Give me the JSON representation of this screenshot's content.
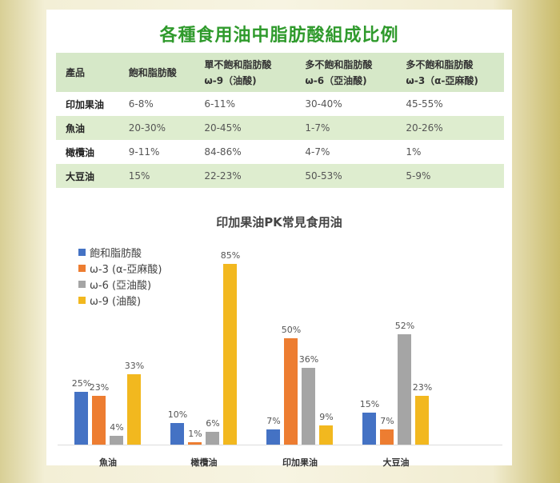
{
  "title": "各種食用油中脂肪酸組成比例",
  "table": {
    "headers": [
      [
        "產品",
        ""
      ],
      [
        "飽和脂肪酸",
        ""
      ],
      [
        "單不飽和脂肪酸",
        "ω-9（油酸)"
      ],
      [
        "多不飽和脂肪酸",
        "ω-6（亞油酸)"
      ],
      [
        "多不飽和脂肪酸",
        "ω-3（α-亞麻酸)"
      ]
    ],
    "rows": [
      [
        "印加果油",
        "6-8%",
        "6-11%",
        "30-40%",
        "45-55%"
      ],
      [
        "魚油",
        "20-30%",
        "20-45%",
        "1-7%",
        "20-26%"
      ],
      [
        "橄欖油",
        "9-11%",
        "84-86%",
        "4-7%",
        "1%"
      ],
      [
        "大豆油",
        "15%",
        "22-23%",
        "50-53%",
        "5-9%"
      ]
    ]
  },
  "chart_data": {
    "type": "bar",
    "title": "印加果油PK常見食用油",
    "categories": [
      "魚油",
      "橄欖油",
      "印加果油",
      "大豆油"
    ],
    "series": [
      {
        "name": "飽和脂肪酸",
        "color": "#4472c4",
        "values": [
          25,
          10,
          7,
          15
        ]
      },
      {
        "name": "ω-3 (α-亞麻酸)",
        "color": "#ed7d31",
        "values": [
          23,
          1,
          50,
          7
        ]
      },
      {
        "name": "ω-6 (亞油酸)",
        "color": "#a5a5a5",
        "values": [
          4,
          6,
          36,
          52
        ]
      },
      {
        "name": "ω-9 (油酸)",
        "color": "#f2b81f",
        "values": [
          33,
          85,
          9,
          23
        ]
      }
    ],
    "ylim": [
      0,
      85
    ],
    "legend": "top-left",
    "grid": false
  }
}
